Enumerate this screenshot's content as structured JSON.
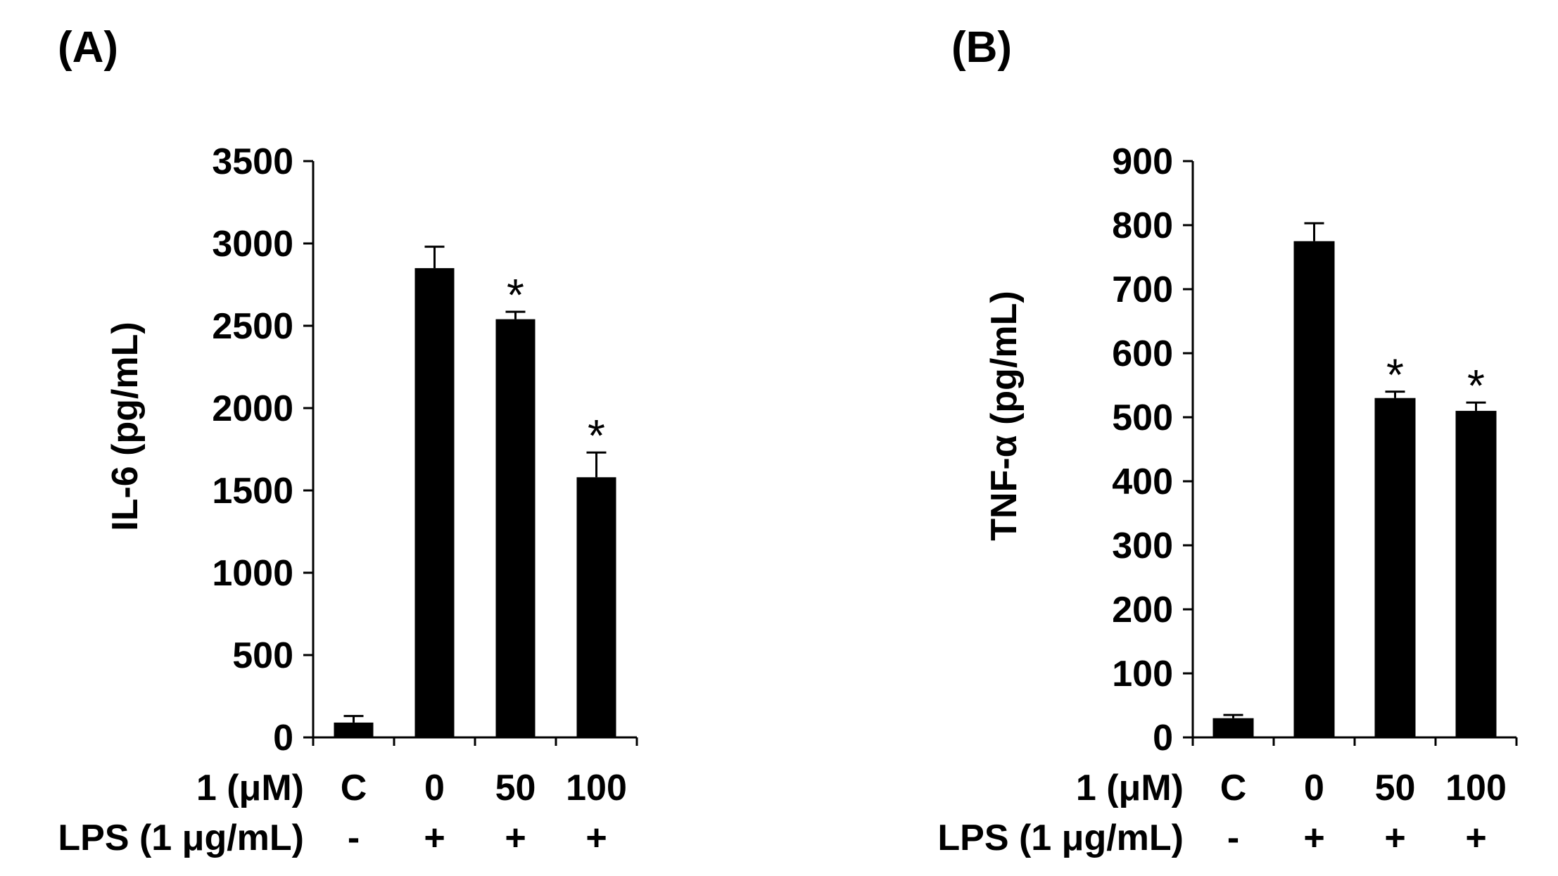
{
  "chart_data": [
    {
      "panel": "(A)",
      "type": "bar",
      "ylabel": "IL-6 (pg/mL)",
      "ylim": [
        0,
        3500
      ],
      "yticks": [
        0,
        500,
        1000,
        1500,
        2000,
        2500,
        3000,
        3500
      ],
      "row1_label": "1 (μM)",
      "row2_label": "LPS (1 μg/mL)",
      "categories": [
        "C",
        "0",
        "50",
        "100"
      ],
      "lps": [
        "-",
        "+",
        "+",
        "+"
      ],
      "values": [
        90,
        2850,
        2540,
        1580
      ],
      "errors": [
        40,
        130,
        45,
        150
      ],
      "significance": [
        "",
        "",
        "*",
        "*"
      ],
      "bar_color": "#000000"
    },
    {
      "panel": "(B)",
      "type": "bar",
      "ylabel": "TNF-α (pg/mL)",
      "ylim": [
        0,
        900
      ],
      "yticks": [
        0,
        100,
        200,
        300,
        400,
        500,
        600,
        700,
        800,
        900
      ],
      "row1_label": "1 (μM)",
      "row2_label": "LPS (1 μg/mL)",
      "categories": [
        "C",
        "0",
        "50",
        "100"
      ],
      "lps": [
        "-",
        "+",
        "+",
        "+"
      ],
      "values": [
        30,
        775,
        530,
        510
      ],
      "errors": [
        5,
        28,
        10,
        13
      ],
      "significance": [
        "",
        "",
        "*",
        "*"
      ],
      "bar_color": "#000000"
    }
  ]
}
